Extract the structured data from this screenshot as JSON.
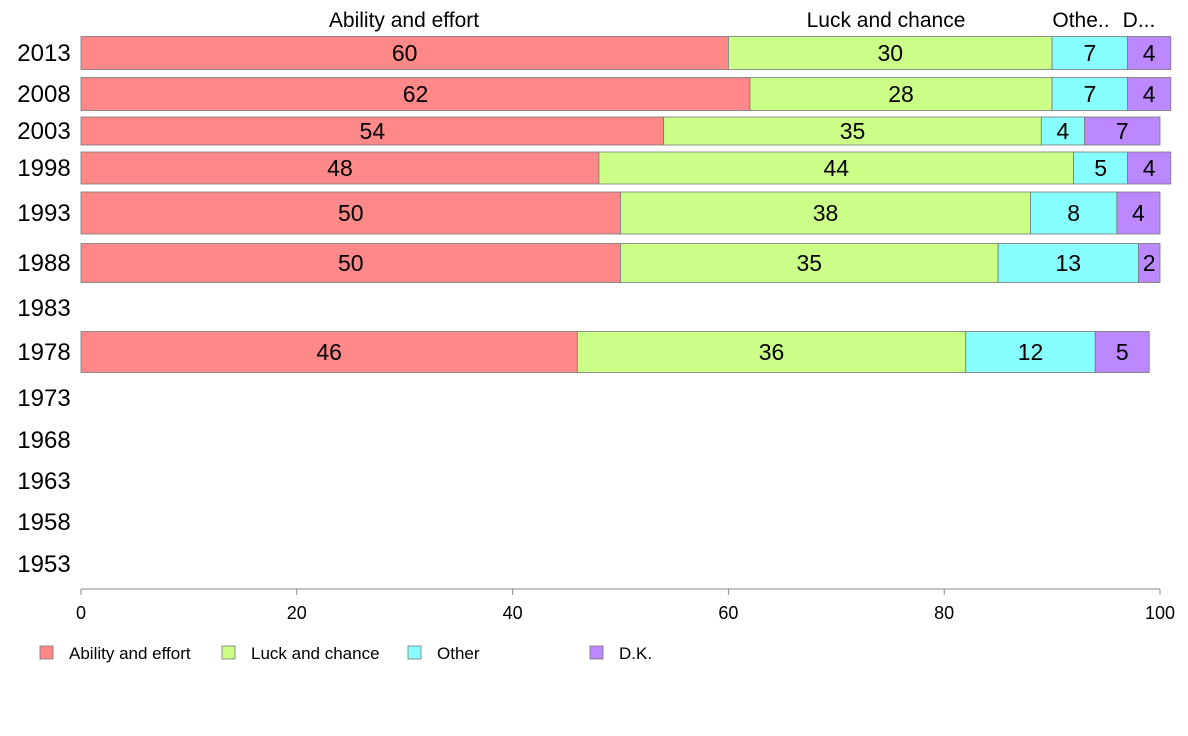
{
  "chart_data": {
    "type": "bar",
    "orientation": "horizontal",
    "stacked": true,
    "categories": [
      "2013",
      "2008",
      "2003",
      "1998",
      "1993",
      "1988",
      "1983",
      "1978",
      "1973",
      "1968",
      "1963",
      "1958",
      "1953"
    ],
    "series": [
      {
        "name": "Ability and effort",
        "color": "#ff8888",
        "values": [
          60,
          62,
          54,
          48,
          50,
          50,
          null,
          46,
          null,
          null,
          null,
          null,
          null
        ]
      },
      {
        "name": "Luck and chance",
        "color": "#ccff88",
        "values": [
          30,
          28,
          35,
          44,
          38,
          35,
          null,
          36,
          null,
          null,
          null,
          null,
          null
        ]
      },
      {
        "name": "Other",
        "color": "#88ffff",
        "values": [
          7,
          7,
          4,
          5,
          8,
          13,
          null,
          12,
          null,
          null,
          null,
          null,
          null
        ]
      },
      {
        "name": "D.K.",
        "color": "#bb88ff",
        "values": [
          4,
          4,
          7,
          4,
          4,
          2,
          null,
          5,
          null,
          null,
          null,
          null,
          null
        ]
      }
    ],
    "column_headers": [
      "Ability and effort",
      "Luck and chance",
      "Othe..",
      "D..."
    ],
    "xlim": [
      0,
      100
    ],
    "xticks": [
      0,
      20,
      40,
      60,
      80,
      100
    ],
    "grid": false,
    "legend_position": "bottom-left"
  }
}
